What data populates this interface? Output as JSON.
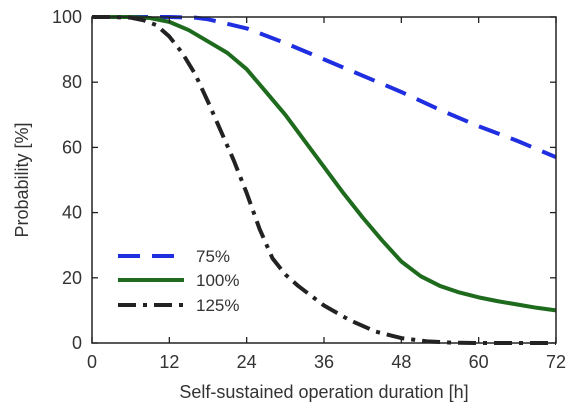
{
  "chart_data": {
    "type": "line",
    "xlabel": "Self-sustained operation duration [h]",
    "ylabel": "Probability [%]",
    "xlim": [
      0,
      72
    ],
    "ylim": [
      0,
      100
    ],
    "xticks": [
      0,
      12,
      24,
      36,
      48,
      60,
      72
    ],
    "yticks": [
      0,
      20,
      40,
      60,
      80,
      100
    ],
    "grid": false,
    "legend_position": "bottom-left",
    "series": [
      {
        "name": "75%",
        "color": "#1f2ee0",
        "style": "dashed",
        "x": [
          0,
          6,
          12,
          16,
          18,
          24,
          30,
          36,
          42,
          48,
          54,
          60,
          66,
          72
        ],
        "y": [
          100,
          100,
          100,
          99.8,
          99.3,
          96.5,
          92,
          87,
          82,
          77,
          71.5,
          66.5,
          62,
          57
        ]
      },
      {
        "name": "100%",
        "color": "#1e6b1e",
        "style": "solid",
        "x": [
          0,
          6,
          9,
          12,
          15,
          18,
          21,
          24,
          27,
          30,
          33,
          36,
          39,
          42,
          45,
          48,
          51,
          54,
          57,
          60,
          63,
          66,
          69,
          72
        ],
        "y": [
          100,
          100,
          99.7,
          98.5,
          96,
          92.5,
          89,
          84,
          77,
          70,
          62,
          54,
          46,
          38.5,
          31.5,
          25,
          20.5,
          17.5,
          15.5,
          14,
          12.8,
          11.8,
          10.8,
          10
        ]
      },
      {
        "name": "125%",
        "color": "#222222",
        "style": "dashdot",
        "x": [
          0,
          3,
          6,
          8,
          10,
          12,
          14,
          16,
          18,
          20,
          22,
          24,
          26,
          28,
          30,
          32,
          36,
          40,
          44,
          48,
          52,
          56,
          60,
          64,
          68,
          72
        ],
        "y": [
          100,
          100,
          99.8,
          99,
          97.5,
          94,
          89,
          82.5,
          74,
          65,
          56,
          46,
          35,
          26,
          21,
          17.5,
          11.5,
          7,
          3.5,
          1.5,
          0.5,
          0.1,
          0,
          0,
          0,
          0
        ]
      }
    ]
  }
}
